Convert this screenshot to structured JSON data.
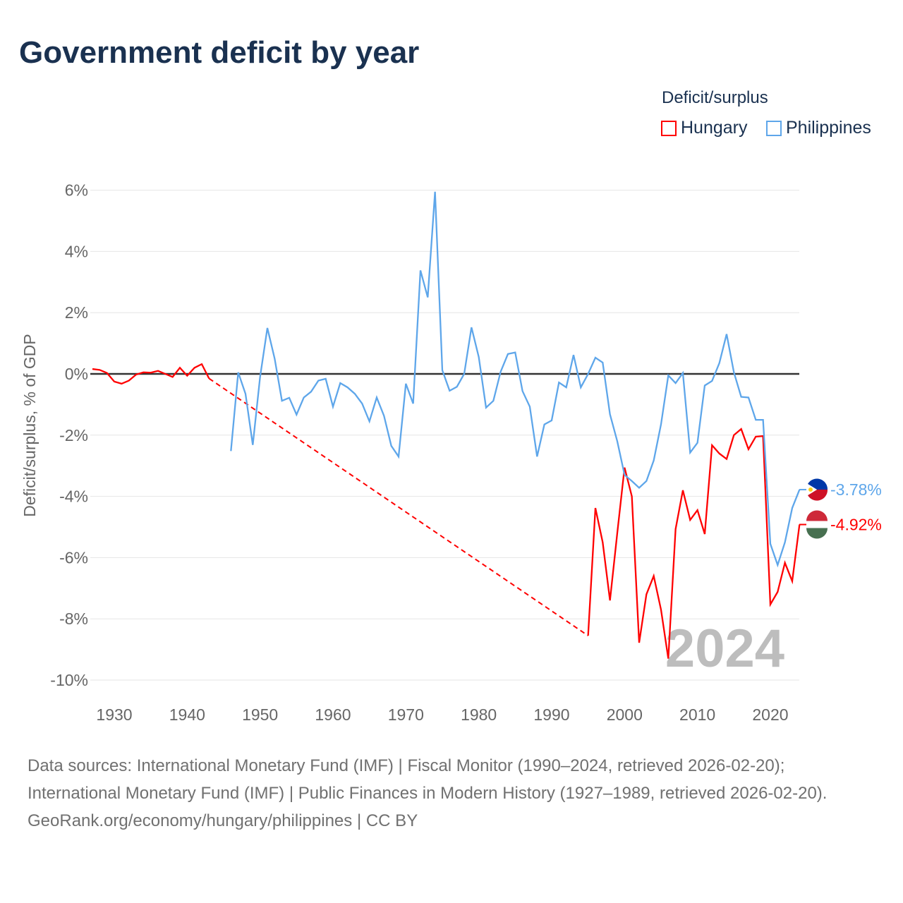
{
  "title": "Government deficit by year",
  "legend": {
    "title": "Deficit/surplus",
    "items": [
      {
        "name": "Hungary",
        "color": "#ff0000"
      },
      {
        "name": "Philippines",
        "color": "#5ea6ea"
      }
    ]
  },
  "chart_data": {
    "type": "line",
    "title": "Government deficit by year",
    "ylabel": "Deficit/surplus, % of GDP",
    "xlabel": "",
    "ylim": [
      -10,
      6
    ],
    "xlim": [
      1927,
      2024
    ],
    "yticks": [
      "6%",
      "4%",
      "2%",
      "0%",
      "-2%",
      "-4%",
      "-6%",
      "-8%",
      "-10%"
    ],
    "ytick_values": [
      6,
      4,
      2,
      0,
      -2,
      -4,
      -6,
      -8,
      -10
    ],
    "xticks": [
      "1930",
      "1940",
      "1950",
      "1960",
      "1970",
      "1980",
      "1990",
      "2000",
      "2010",
      "2020"
    ],
    "xtick_values": [
      1930,
      1940,
      1950,
      1960,
      1970,
      1980,
      1990,
      2000,
      2010,
      2020
    ],
    "year_label": "2024",
    "series": [
      {
        "name": "Hungary",
        "color": "#ff0000",
        "end_label": "-4.92%",
        "points": [
          [
            1927,
            0.16
          ],
          [
            1928,
            0.13
          ],
          [
            1929,
            0.03
          ],
          [
            1930,
            -0.25
          ],
          [
            1931,
            -0.32
          ],
          [
            1932,
            -0.22
          ],
          [
            1933,
            -0.02
          ],
          [
            1934,
            0.05
          ],
          [
            1935,
            0.04
          ],
          [
            1936,
            0.1
          ],
          [
            1937,
            0.0
          ],
          [
            1938,
            -0.1
          ],
          [
            1939,
            0.2
          ],
          [
            1940,
            -0.06
          ],
          [
            1941,
            0.2
          ],
          [
            1942,
            0.32
          ],
          [
            1943,
            -0.15
          ],
          [
            1995,
            -8.55
          ],
          [
            1996,
            -4.38
          ],
          [
            1997,
            -5.5
          ],
          [
            1998,
            -7.4
          ],
          [
            1999,
            -5.2
          ],
          [
            2000,
            -3.06
          ],
          [
            2001,
            -4.0
          ],
          [
            2002,
            -8.78
          ],
          [
            2003,
            -7.2
          ],
          [
            2004,
            -6.6
          ],
          [
            2005,
            -7.7
          ],
          [
            2006,
            -9.3
          ],
          [
            2007,
            -5.07
          ],
          [
            2008,
            -3.8
          ],
          [
            2009,
            -4.77
          ],
          [
            2010,
            -4.45
          ],
          [
            2011,
            -5.23
          ],
          [
            2012,
            -2.33
          ],
          [
            2013,
            -2.6
          ],
          [
            2014,
            -2.78
          ],
          [
            2015,
            -2.0
          ],
          [
            2016,
            -1.8
          ],
          [
            2017,
            -2.46
          ],
          [
            2018,
            -2.05
          ],
          [
            2019,
            -2.03
          ],
          [
            2020,
            -7.53
          ],
          [
            2021,
            -7.12
          ],
          [
            2022,
            -6.17
          ],
          [
            2023,
            -6.77
          ],
          [
            2024,
            -4.92
          ]
        ]
      },
      {
        "name": "Philippines",
        "color": "#5ea6ea",
        "end_label": "-3.78%",
        "points": [
          [
            1946,
            -2.52
          ],
          [
            1947,
            0.05
          ],
          [
            1948,
            -0.65
          ],
          [
            1949,
            -2.32
          ],
          [
            1950,
            -0.1
          ],
          [
            1951,
            1.5
          ],
          [
            1952,
            0.5
          ],
          [
            1953,
            -0.88
          ],
          [
            1954,
            -0.78
          ],
          [
            1955,
            -1.33
          ],
          [
            1956,
            -0.77
          ],
          [
            1957,
            -0.58
          ],
          [
            1958,
            -0.22
          ],
          [
            1959,
            -0.16
          ],
          [
            1960,
            -1.07
          ],
          [
            1961,
            -0.3
          ],
          [
            1962,
            -0.44
          ],
          [
            1963,
            -0.65
          ],
          [
            1964,
            -0.97
          ],
          [
            1965,
            -1.55
          ],
          [
            1966,
            -0.77
          ],
          [
            1967,
            -1.37
          ],
          [
            1968,
            -2.35
          ],
          [
            1969,
            -2.7
          ],
          [
            1970,
            -0.32
          ],
          [
            1971,
            -0.97
          ],
          [
            1972,
            3.38
          ],
          [
            1973,
            2.5
          ],
          [
            1974,
            5.95
          ],
          [
            1975,
            0.12
          ],
          [
            1976,
            -0.55
          ],
          [
            1977,
            -0.42
          ],
          [
            1978,
            0.0
          ],
          [
            1979,
            1.52
          ],
          [
            1980,
            0.55
          ],
          [
            1981,
            -1.1
          ],
          [
            1982,
            -0.88
          ],
          [
            1983,
            0.07
          ],
          [
            1984,
            0.65
          ],
          [
            1985,
            0.7
          ],
          [
            1986,
            -0.56
          ],
          [
            1987,
            -1.07
          ],
          [
            1988,
            -2.7
          ],
          [
            1989,
            -1.65
          ],
          [
            1990,
            -1.52
          ],
          [
            1991,
            -0.28
          ],
          [
            1992,
            -0.44
          ],
          [
            1993,
            0.62
          ],
          [
            1994,
            -0.44
          ],
          [
            1995,
            0.0
          ],
          [
            1996,
            0.53
          ],
          [
            1997,
            0.37
          ],
          [
            1998,
            -1.32
          ],
          [
            1999,
            -2.2
          ],
          [
            2000,
            -3.3
          ],
          [
            2001,
            -3.5
          ],
          [
            2002,
            -3.72
          ],
          [
            2003,
            -3.5
          ],
          [
            2004,
            -2.83
          ],
          [
            2005,
            -1.65
          ],
          [
            2006,
            -0.05
          ],
          [
            2007,
            -0.3
          ],
          [
            2008,
            0.03
          ],
          [
            2009,
            -2.57
          ],
          [
            2010,
            -2.25
          ],
          [
            2011,
            -0.38
          ],
          [
            2012,
            -0.23
          ],
          [
            2013,
            0.35
          ],
          [
            2014,
            1.3
          ],
          [
            2015,
            0.05
          ],
          [
            2016,
            -0.75
          ],
          [
            2017,
            -0.77
          ],
          [
            2018,
            -1.5
          ],
          [
            2019,
            -1.5
          ],
          [
            2020,
            -5.55
          ],
          [
            2021,
            -6.24
          ],
          [
            2022,
            -5.5
          ],
          [
            2023,
            -4.38
          ],
          [
            2024,
            -3.78
          ]
        ]
      }
    ]
  },
  "footer": {
    "sources": "Data sources: International Monetary Fund (IMF) | Fiscal Monitor (1990–2024, retrieved 2026-02-20); International Monetary Fund (IMF) | Public Finances in Modern History (1927–1989, retrieved 2026-02-20).",
    "credit": "GeoRank.org/economy/hungary/philippines | CC BY"
  }
}
